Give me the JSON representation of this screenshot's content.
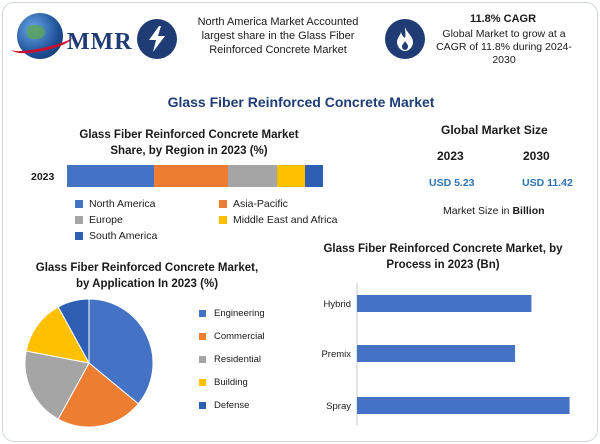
{
  "header": {
    "logo_text": "MMR",
    "box1_text": "North America Market Accounted largest share in the Glass Fiber Reinforced Concrete Market",
    "box2_title": "11.8% CAGR",
    "box2_text": "Global Market to grow at a CAGR of 11.8% during 2024-2030",
    "box1_icon": "lightning-icon",
    "box2_icon": "flame-icon"
  },
  "main_title": "Glass Fiber Reinforced Concrete Market",
  "market_size": {
    "title": "Global Market Size",
    "year1": "2023",
    "year2": "2030",
    "value1": "USD 5.23",
    "value2": "USD 11.42",
    "note_prefix": "Market Size in ",
    "note_bold": "Billion"
  },
  "colors": {
    "north_america": "#4472c4",
    "asia_pacific": "#ed7d31",
    "europe": "#a5a5a5",
    "mea": "#ffc000",
    "south_america": "#2f5fb3",
    "hbar": "#4472c4"
  },
  "chart_data": [
    {
      "type": "bar",
      "orientation": "horizontal-stacked",
      "title": "Glass Fiber Reinforced Concrete Market Share, by Region in 2023 (%)",
      "categories": [
        "2023"
      ],
      "series": [
        {
          "name": "North America",
          "values": [
            34
          ]
        },
        {
          "name": "Asia-Pacific",
          "values": [
            29
          ]
        },
        {
          "name": "Europe",
          "values": [
            19
          ]
        },
        {
          "name": "Middle East and Africa",
          "values": [
            11
          ]
        },
        {
          "name": "South America",
          "values": [
            7
          ]
        }
      ],
      "xlim": [
        0,
        100
      ],
      "legend": "bottom"
    },
    {
      "type": "pie",
      "title": "Glass Fiber Reinforced Concrete Market, by Application In 2023 (%)",
      "labels": [
        "Engineering",
        "Commercial",
        "Residential",
        "Building",
        "Defense"
      ],
      "values": [
        36,
        22,
        20,
        14,
        8
      ],
      "colors": [
        "#4472c4",
        "#ed7d31",
        "#a5a5a5",
        "#ffc000",
        "#2f5fb3"
      ],
      "legend": "right"
    },
    {
      "type": "bar",
      "orientation": "horizontal",
      "title": "Glass Fiber Reinforced Concrete Market, by Process in 2023 (Bn)",
      "categories": [
        "Hybrid",
        "Premix",
        "Spray"
      ],
      "values": [
        1.6,
        1.45,
        1.95
      ],
      "xlim": [
        0,
        2.0
      ],
      "grid": false
    }
  ]
}
